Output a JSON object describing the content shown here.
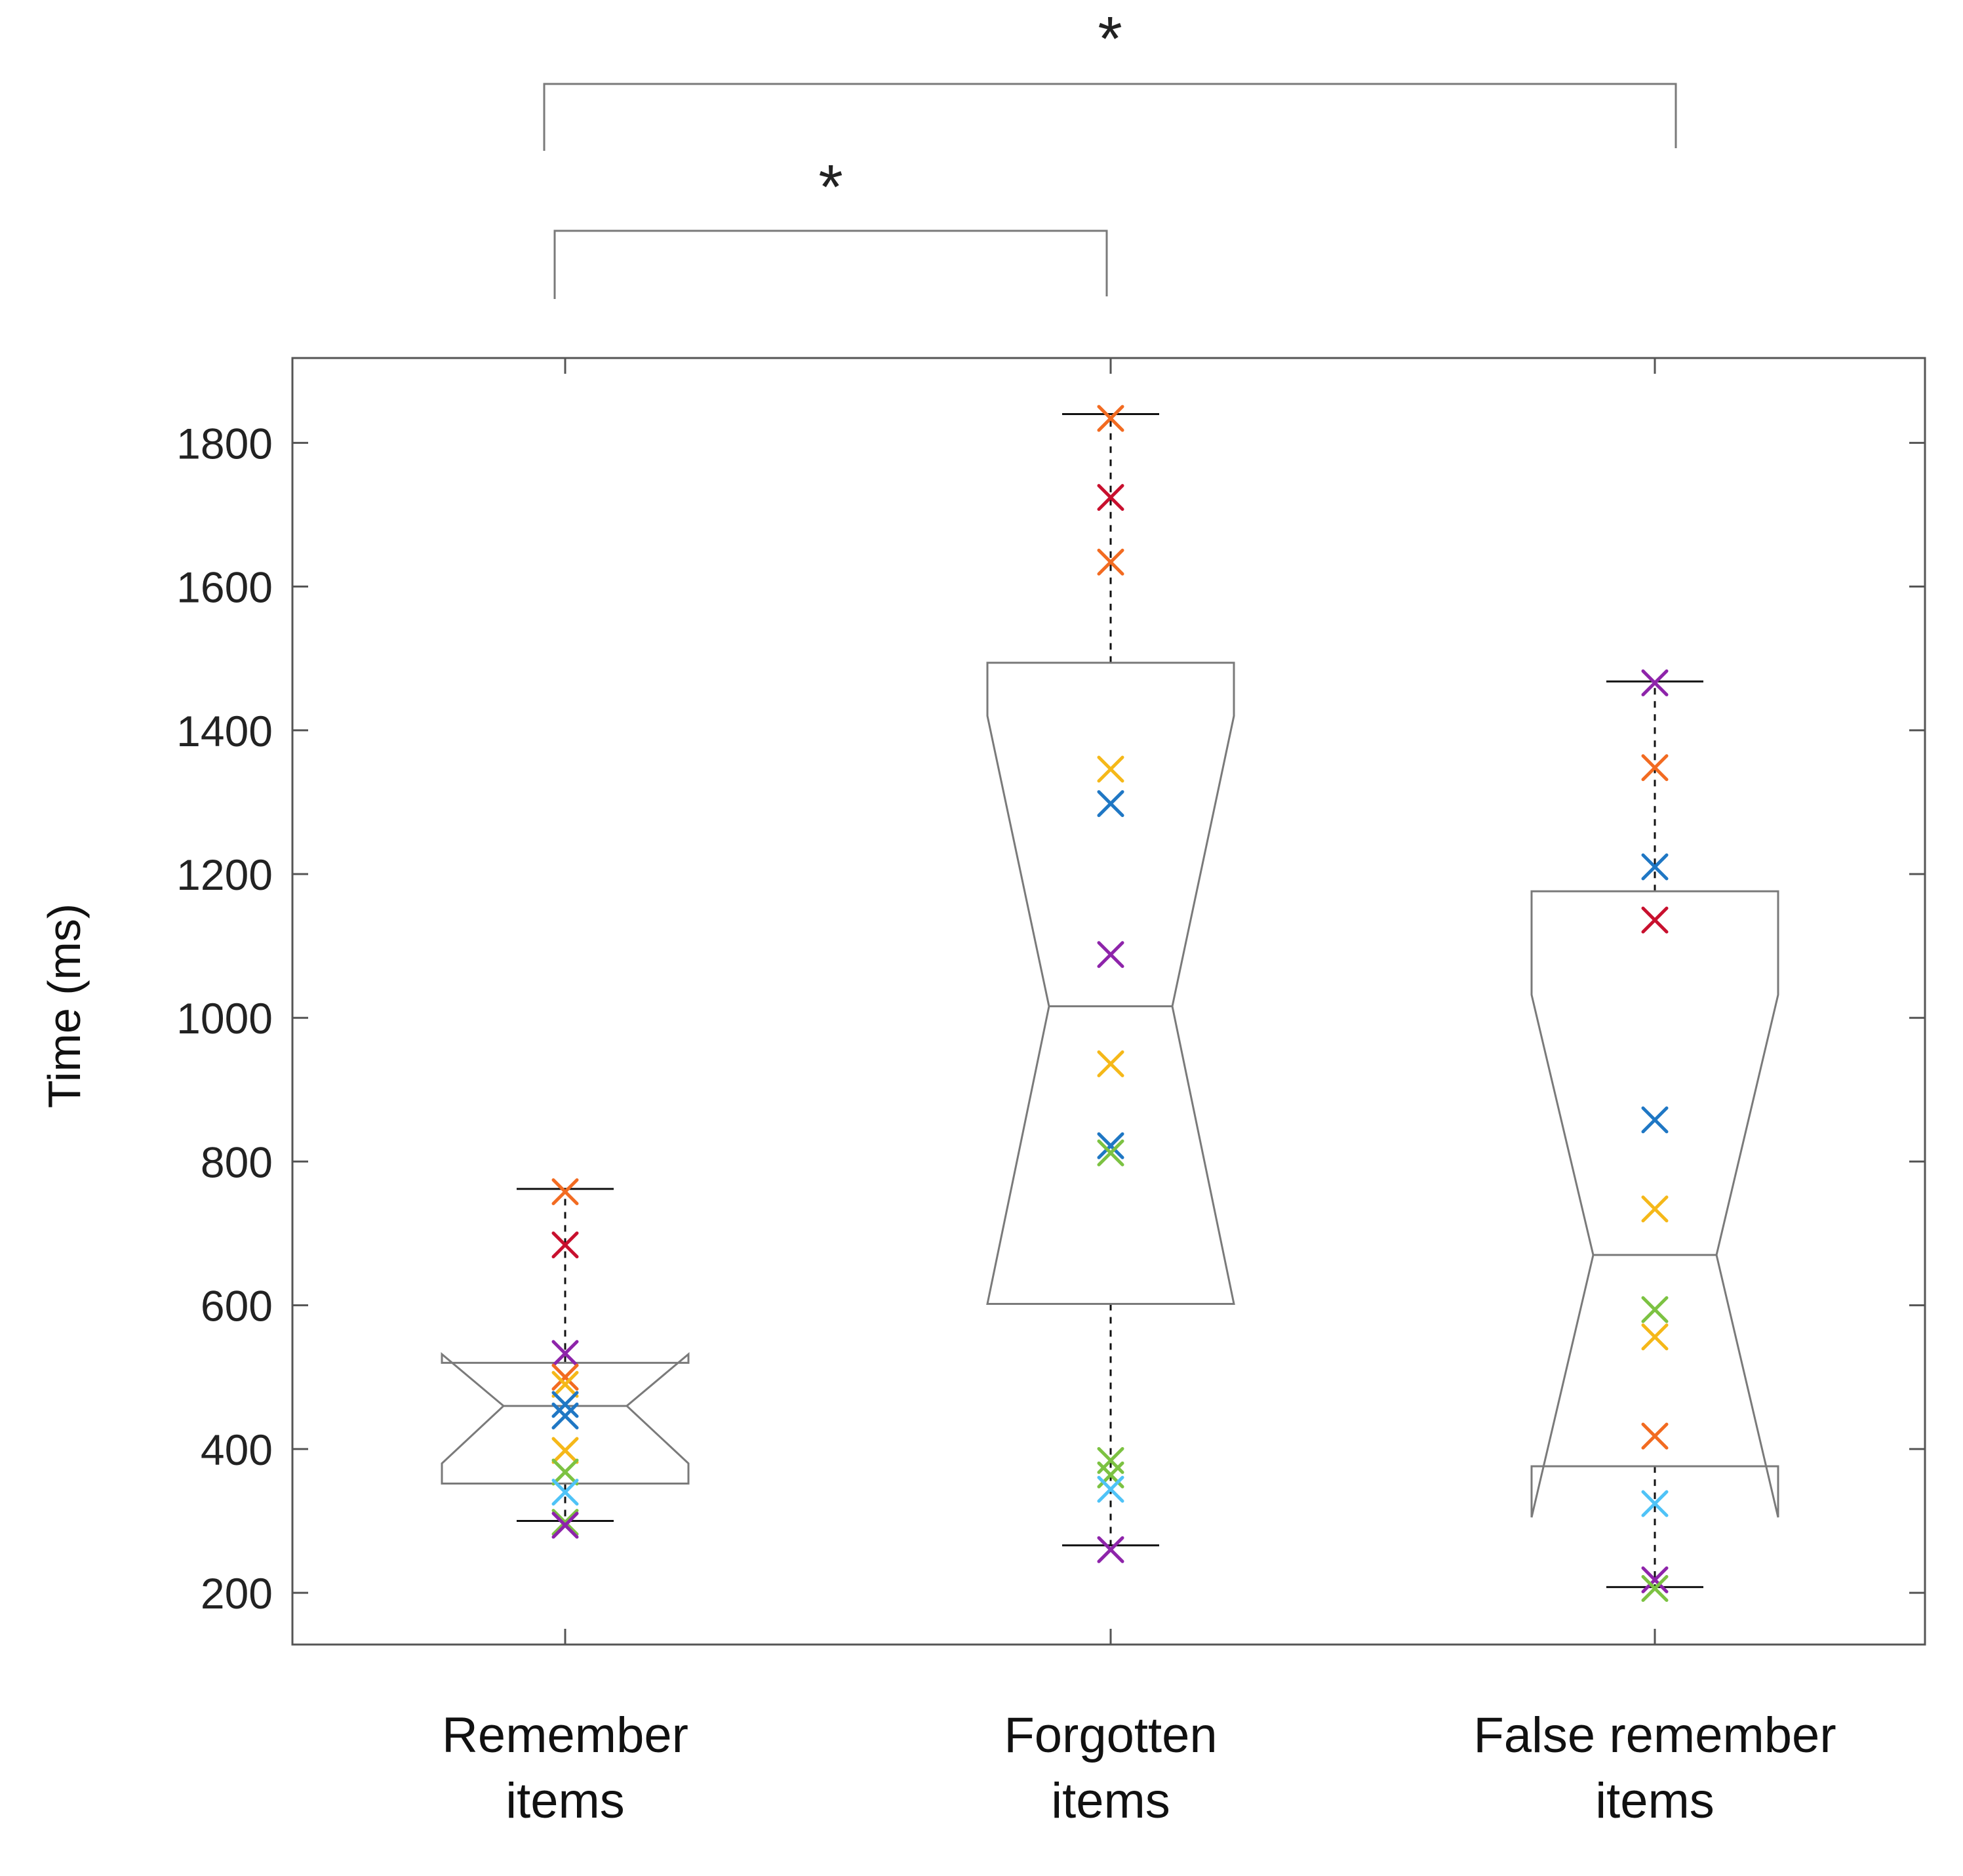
{
  "chart_data": {
    "type": "boxplot",
    "notched": true,
    "ylabel": "Time (ms)",
    "ylim": [
      128,
      1918
    ],
    "yticks": [
      200,
      400,
      600,
      800,
      1000,
      1200,
      1400,
      1600,
      1800
    ],
    "ytick_labels": [
      "200",
      "400",
      "600",
      "800",
      "1000",
      "1200",
      "1400",
      "1600",
      "1800"
    ],
    "grid": false,
    "categories": [
      {
        "line1": "Remember",
        "line2": "items"
      },
      {
        "line1": "Forgotten",
        "line2": "items"
      },
      {
        "line1": "False remember",
        "line2": "items"
      }
    ],
    "boxes": [
      {
        "whisker_low": 300,
        "q1": 352,
        "median": 460,
        "q3": 520,
        "whisker_high": 762,
        "notch_low": 380,
        "notch_high": 532
      },
      {
        "whisker_low": 266,
        "q1": 602,
        "median": 1016,
        "q3": 1494,
        "whisker_high": 1840,
        "notch_low": 602,
        "notch_high": 1420
      },
      {
        "whisker_low": 208,
        "q1": 376,
        "median": 670,
        "q3": 1176,
        "whisker_high": 1468,
        "notch_low": 305,
        "notch_high": 1032
      }
    ],
    "points": [
      [
        {
          "y": 758,
          "color": "#f26b21"
        },
        {
          "y": 684,
          "color": "#c8102e"
        },
        {
          "y": 533,
          "color": "#8e24aa"
        },
        {
          "y": 500,
          "color": "#f26b21"
        },
        {
          "y": 490,
          "color": "#f5b819"
        },
        {
          "y": 462,
          "color": "#1f77c4"
        },
        {
          "y": 446,
          "color": "#1f77c4"
        },
        {
          "y": 398,
          "color": "#f5b819"
        },
        {
          "y": 368,
          "color": "#7cc242"
        },
        {
          "y": 340,
          "color": "#4fc3f7"
        },
        {
          "y": 298,
          "color": "#7cc242"
        },
        {
          "y": 294,
          "color": "#8e24aa"
        }
      ],
      [
        {
          "y": 1834,
          "color": "#f26b21"
        },
        {
          "y": 1724,
          "color": "#c8102e"
        },
        {
          "y": 1634,
          "color": "#f26b21"
        },
        {
          "y": 1346,
          "color": "#f5b819"
        },
        {
          "y": 1298,
          "color": "#1f77c4"
        },
        {
          "y": 1088,
          "color": "#8e24aa"
        },
        {
          "y": 936,
          "color": "#f5b819"
        },
        {
          "y": 822,
          "color": "#1f77c4"
        },
        {
          "y": 812,
          "color": "#7cc242"
        },
        {
          "y": 384,
          "color": "#7cc242"
        },
        {
          "y": 364,
          "color": "#7cc242"
        },
        {
          "y": 344,
          "color": "#4fc3f7"
        },
        {
          "y": 260,
          "color": "#8e24aa"
        }
      ],
      [
        {
          "y": 1466,
          "color": "#8e24aa"
        },
        {
          "y": 1348,
          "color": "#f26b21"
        },
        {
          "y": 1210,
          "color": "#1f77c4"
        },
        {
          "y": 1136,
          "color": "#c8102e"
        },
        {
          "y": 858,
          "color": "#1f77c4"
        },
        {
          "y": 734,
          "color": "#f5b819"
        },
        {
          "y": 594,
          "color": "#7cc242"
        },
        {
          "y": 556,
          "color": "#f5b819"
        },
        {
          "y": 418,
          "color": "#f26b21"
        },
        {
          "y": 324,
          "color": "#4fc3f7"
        },
        {
          "y": 218,
          "color": "#8e24aa"
        },
        {
          "y": 206,
          "color": "#7cc242"
        }
      ]
    ],
    "significance": [
      {
        "from": 0,
        "to": 2,
        "label": "*"
      },
      {
        "from": 0,
        "to": 1,
        "label": "*"
      }
    ]
  }
}
